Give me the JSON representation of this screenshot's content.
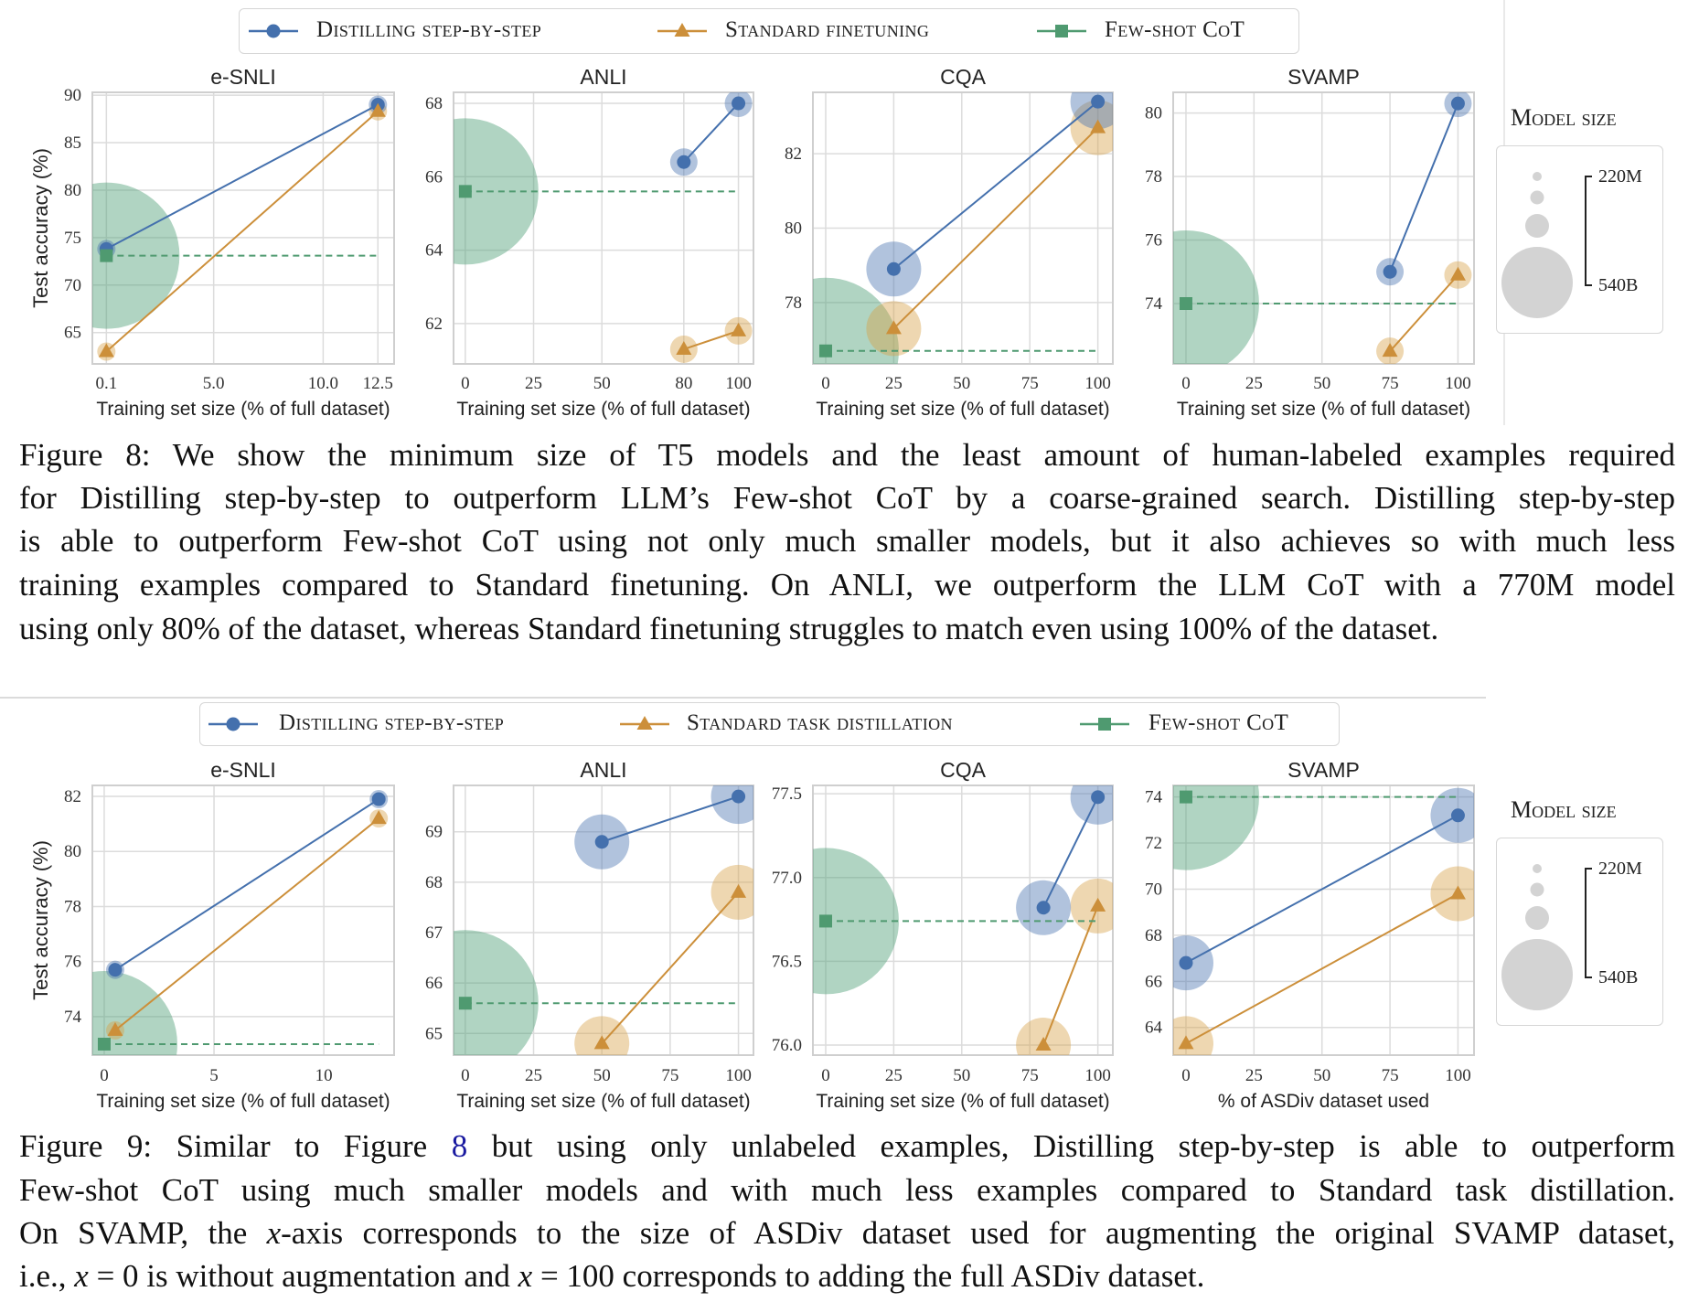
{
  "colors": {
    "distilling": "#4470ad",
    "standard": "#cc8f3a",
    "few_shot_cot": "#4f9a70",
    "model_size_circle": "#d3d3d3"
  },
  "figures": [
    {
      "legend": [
        "Distilling step-by-step",
        "Standard finetuning",
        "Few-shot CoT"
      ],
      "model_size_legend": {
        "title": "Model size",
        "top_label": "220M",
        "bottom_label": "540B"
      },
      "caption_lines": [
        [
          {
            "t": "Figure 8:  We show the minimum size of T5 models and the least amount of human-labeled examples required"
          }
        ],
        [
          {
            "t": "for Distilling step-by-step to outperform LLM’s Few-shot CoT by a coarse-grained search. Distilling step-by-step"
          }
        ],
        [
          {
            "t": "is able to outperform Few-shot CoT using not only much smaller models, but it also achieves so with much less"
          }
        ],
        [
          {
            "t": "training examples compared to Standard finetuning. On ANLI, we outperform the LLM CoT with a 770M model"
          }
        ],
        [
          {
            "t": "using only 80% of the dataset, whereas Standard finetuning struggles to match even using 100% of the dataset."
          }
        ]
      ]
    },
    {
      "legend": [
        "Distilling step-by-step",
        "Standard task distillation",
        "Few-shot CoT"
      ],
      "model_size_legend": {
        "title": "Model size",
        "top_label": "220M",
        "bottom_label": "540B"
      },
      "caption_lines": [
        [
          {
            "t": "Figure 9:  Similar to Figure "
          },
          {
            "t": "8",
            "s": "ref"
          },
          {
            "t": " but using only unlabeled examples, Distilling step-by-step is able to outperform"
          }
        ],
        [
          {
            "t": "Few-shot CoT using much smaller models and with much less examples compared to Standard task distillation."
          }
        ],
        [
          {
            "t": "On SVAMP, the "
          },
          {
            "t": "x",
            "s": "math"
          },
          {
            "t": "-axis corresponds to the size of ASDiv dataset used for augmenting the original SVAMP dataset,"
          }
        ],
        [
          {
            "t": "i.e., "
          },
          {
            "t": "x",
            "s": "math"
          },
          {
            "t": " = 0 is without augmentation and "
          },
          {
            "t": "x",
            "s": "math"
          },
          {
            "t": " = 100 corresponds to adding the full ASDiv dataset."
          }
        ]
      ]
    }
  ],
  "chart_data": [
    {
      "type": "scatter",
      "title": "e-SNLI",
      "xlabel": "Training set size (% of full dataset)",
      "ylabel": "Test accuracy (%)",
      "xlim": [
        -0.54,
        13.24
      ],
      "ylim": [
        61.7,
        90.3
      ],
      "xticks": [
        0.1,
        5,
        10,
        12.5
      ],
      "xtick_labels": [
        "0.1",
        "5.0",
        "10.0",
        "12.5"
      ],
      "yticks": [
        65,
        70,
        75,
        80,
        85,
        90
      ],
      "ytick_labels": [
        "65",
        "70",
        "75",
        "80",
        "85",
        "90"
      ],
      "series": [
        {
          "name": "Distilling step-by-step",
          "key": "distilling",
          "points": [
            {
              "x": 0.1,
              "y": 73.8,
              "model_size": "220M"
            },
            {
              "x": 12.5,
              "y": 89.0,
              "model_size": "220M"
            }
          ]
        },
        {
          "name": "Standard finetuning",
          "key": "standard",
          "points": [
            {
              "x": 0.1,
              "y": 63.0,
              "model_size": "220M"
            },
            {
              "x": 12.5,
              "y": 88.3,
              "model_size": "220M"
            }
          ]
        },
        {
          "name": "Few-shot CoT",
          "key": "few_shot_cot",
          "points": [
            {
              "x": 0.1,
              "y": 73.1,
              "model_size": "540B"
            }
          ],
          "baseline_to_x": 12.5
        }
      ]
    },
    {
      "type": "scatter",
      "title": "ANLI",
      "xlabel": "Training set size (% of full dataset)",
      "xlim": [
        -4.3,
        105.5
      ],
      "ylim": [
        60.9,
        68.3
      ],
      "xticks": [
        0,
        25,
        50,
        80,
        100
      ],
      "xtick_labels": [
        "0",
        "25",
        "50",
        "80",
        "100"
      ],
      "yticks": [
        62,
        64,
        66,
        68
      ],
      "ytick_labels": [
        "62",
        "64",
        "66",
        "68"
      ],
      "series": [
        {
          "name": "Distilling step-by-step",
          "key": "distilling",
          "points": [
            {
              "x": 80,
              "y": 66.4,
              "model_size": "770M"
            },
            {
              "x": 100,
              "y": 68.0,
              "model_size": "770M"
            }
          ]
        },
        {
          "name": "Standard finetuning",
          "key": "standard",
          "points": [
            {
              "x": 80,
              "y": 61.3,
              "model_size": "770M"
            },
            {
              "x": 100,
              "y": 61.8,
              "model_size": "770M"
            }
          ]
        },
        {
          "name": "Few-shot CoT",
          "key": "few_shot_cot",
          "points": [
            {
              "x": 0,
              "y": 65.6,
              "model_size": "540B"
            }
          ],
          "baseline_to_x": 100
        }
      ]
    },
    {
      "type": "scatter",
      "title": "CQA",
      "xlabel": "Training set size (% of full dataset)",
      "xlim": [
        -4.7,
        105.5
      ],
      "ylim": [
        76.35,
        83.65
      ],
      "xticks": [
        0,
        25,
        50,
        75,
        100
      ],
      "xtick_labels": [
        "0",
        "25",
        "50",
        "75",
        "100"
      ],
      "yticks": [
        78,
        80,
        82
      ],
      "ytick_labels": [
        "78",
        "80",
        "82"
      ],
      "series": [
        {
          "name": "Distilling step-by-step",
          "key": "distilling",
          "points": [
            {
              "x": 25,
              "y": 78.9,
              "model_size": "11B"
            },
            {
              "x": 100,
              "y": 83.4,
              "model_size": "11B"
            }
          ]
        },
        {
          "name": "Standard finetuning",
          "key": "standard",
          "points": [
            {
              "x": 25,
              "y": 77.3,
              "model_size": "11B"
            },
            {
              "x": 100,
              "y": 82.7,
              "model_size": "11B"
            }
          ]
        },
        {
          "name": "Few-shot CoT",
          "key": "few_shot_cot",
          "points": [
            {
              "x": 0,
              "y": 76.7,
              "model_size": "540B"
            }
          ],
          "baseline_to_x": 100
        }
      ]
    },
    {
      "type": "scatter",
      "title": "SVAMP",
      "xlabel": "Training set size (% of full dataset)",
      "xlim": [
        -4.7,
        105.9
      ],
      "ylim": [
        72.1,
        80.65
      ],
      "xticks": [
        0,
        25,
        50,
        75,
        100
      ],
      "xtick_labels": [
        "0",
        "25",
        "50",
        "75",
        "100"
      ],
      "yticks": [
        74,
        76,
        78,
        80
      ],
      "ytick_labels": [
        "74",
        "76",
        "78",
        "80"
      ],
      "series": [
        {
          "name": "Distilling step-by-step",
          "key": "distilling",
          "points": [
            {
              "x": 75,
              "y": 75.0,
              "model_size": "770M"
            },
            {
              "x": 100,
              "y": 80.3,
              "model_size": "770M"
            }
          ]
        },
        {
          "name": "Standard finetuning",
          "key": "standard",
          "points": [
            {
              "x": 75,
              "y": 72.5,
              "model_size": "770M"
            },
            {
              "x": 100,
              "y": 74.9,
              "model_size": "770M"
            }
          ]
        },
        {
          "name": "Few-shot CoT",
          "key": "few_shot_cot",
          "points": [
            {
              "x": 0,
              "y": 74.0,
              "model_size": "540B"
            }
          ],
          "baseline_to_x": 100
        }
      ]
    },
    {
      "type": "scatter",
      "title": "e-SNLI",
      "xlabel": "Training set size (% of full dataset)",
      "ylabel": "Test accuracy (%)",
      "xlim": [
        -0.54,
        13.2
      ],
      "ylim": [
        72.6,
        82.4
      ],
      "xticks": [
        0,
        5,
        10
      ],
      "xtick_labels": [
        "0",
        "5",
        "10"
      ],
      "yticks": [
        74,
        76,
        78,
        80,
        82
      ],
      "ytick_labels": [
        "74",
        "76",
        "78",
        "80",
        "82"
      ],
      "series": [
        {
          "name": "Distilling step-by-step",
          "key": "distilling",
          "points": [
            {
              "x": 0.5,
              "y": 75.7,
              "model_size": "220M"
            },
            {
              "x": 12.5,
              "y": 81.9,
              "model_size": "220M"
            }
          ]
        },
        {
          "name": "Standard task distillation",
          "key": "standard",
          "points": [
            {
              "x": 0.5,
              "y": 73.5,
              "model_size": "220M"
            },
            {
              "x": 12.5,
              "y": 81.2,
              "model_size": "220M"
            }
          ]
        },
        {
          "name": "Few-shot CoT",
          "key": "few_shot_cot",
          "points": [
            {
              "x": 0,
              "y": 73.0,
              "model_size": "540B"
            }
          ],
          "baseline_to_x": 12.5
        }
      ]
    },
    {
      "type": "scatter",
      "title": "ANLI",
      "xlabel": "Training set size (% of full dataset)",
      "xlim": [
        -4.3,
        105.5
      ],
      "ylim": [
        64.57,
        69.92
      ],
      "xticks": [
        0,
        25,
        50,
        75,
        100
      ],
      "xtick_labels": [
        "0",
        "25",
        "50",
        "75",
        "100"
      ],
      "yticks": [
        65,
        66,
        67,
        68,
        69
      ],
      "ytick_labels": [
        "65",
        "66",
        "67",
        "68",
        "69"
      ],
      "series": [
        {
          "name": "Distilling step-by-step",
          "key": "distilling",
          "points": [
            {
              "x": 50,
              "y": 68.8,
              "model_size": "11B"
            },
            {
              "x": 100,
              "y": 69.7,
              "model_size": "11B"
            }
          ]
        },
        {
          "name": "Standard task distillation",
          "key": "standard",
          "points": [
            {
              "x": 50,
              "y": 64.8,
              "model_size": "11B"
            },
            {
              "x": 100,
              "y": 67.8,
              "model_size": "11B"
            }
          ]
        },
        {
          "name": "Few-shot CoT",
          "key": "few_shot_cot",
          "points": [
            {
              "x": 0,
              "y": 65.6,
              "model_size": "540B"
            }
          ],
          "baseline_to_x": 100
        }
      ]
    },
    {
      "type": "scatter",
      "title": "CQA",
      "xlabel": "Training set size (% of full dataset)",
      "xlim": [
        -4.7,
        105.5
      ],
      "ylim": [
        75.94,
        77.55
      ],
      "xticks": [
        0,
        25,
        50,
        75,
        100
      ],
      "xtick_labels": [
        "0",
        "25",
        "50",
        "75",
        "100"
      ],
      "yticks": [
        76.0,
        76.5,
        77.0,
        77.5
      ],
      "ytick_labels": [
        "76.0",
        "76.5",
        "77.0",
        "77.5"
      ],
      "series": [
        {
          "name": "Distilling step-by-step",
          "key": "distilling",
          "points": [
            {
              "x": 80,
              "y": 76.82,
              "model_size": "11B"
            },
            {
              "x": 100,
              "y": 77.48,
              "model_size": "11B"
            }
          ]
        },
        {
          "name": "Standard task distillation",
          "key": "standard",
          "points": [
            {
              "x": 80,
              "y": 76.0,
              "model_size": "11B"
            },
            {
              "x": 100,
              "y": 76.83,
              "model_size": "11B"
            }
          ]
        },
        {
          "name": "Few-shot CoT",
          "key": "few_shot_cot",
          "points": [
            {
              "x": 0,
              "y": 76.74,
              "model_size": "540B"
            }
          ],
          "baseline_to_x": 100
        }
      ]
    },
    {
      "type": "scatter",
      "title": "SVAMP",
      "xlabel": "% of ASDiv dataset used",
      "xlim": [
        -4.7,
        105.9
      ],
      "ylim": [
        62.8,
        74.5
      ],
      "xticks": [
        0,
        25,
        50,
        75,
        100
      ],
      "xtick_labels": [
        "0",
        "25",
        "50",
        "75",
        "100"
      ],
      "yticks": [
        64,
        66,
        68,
        70,
        72,
        74
      ],
      "ytick_labels": [
        "64",
        "66",
        "68",
        "70",
        "72",
        "74"
      ],
      "series": [
        {
          "name": "Distilling step-by-step",
          "key": "distilling",
          "points": [
            {
              "x": 0,
              "y": 66.8,
              "model_size": "11B"
            },
            {
              "x": 100,
              "y": 73.2,
              "model_size": "11B"
            }
          ]
        },
        {
          "name": "Standard task distillation",
          "key": "standard",
          "points": [
            {
              "x": 0,
              "y": 63.3,
              "model_size": "11B"
            },
            {
              "x": 100,
              "y": 69.8,
              "model_size": "11B"
            }
          ]
        },
        {
          "name": "Few-shot CoT",
          "key": "few_shot_cot",
          "points": [
            {
              "x": 0,
              "y": 74.0,
              "model_size": "540B"
            }
          ],
          "baseline_to_x": 100
        }
      ]
    }
  ]
}
